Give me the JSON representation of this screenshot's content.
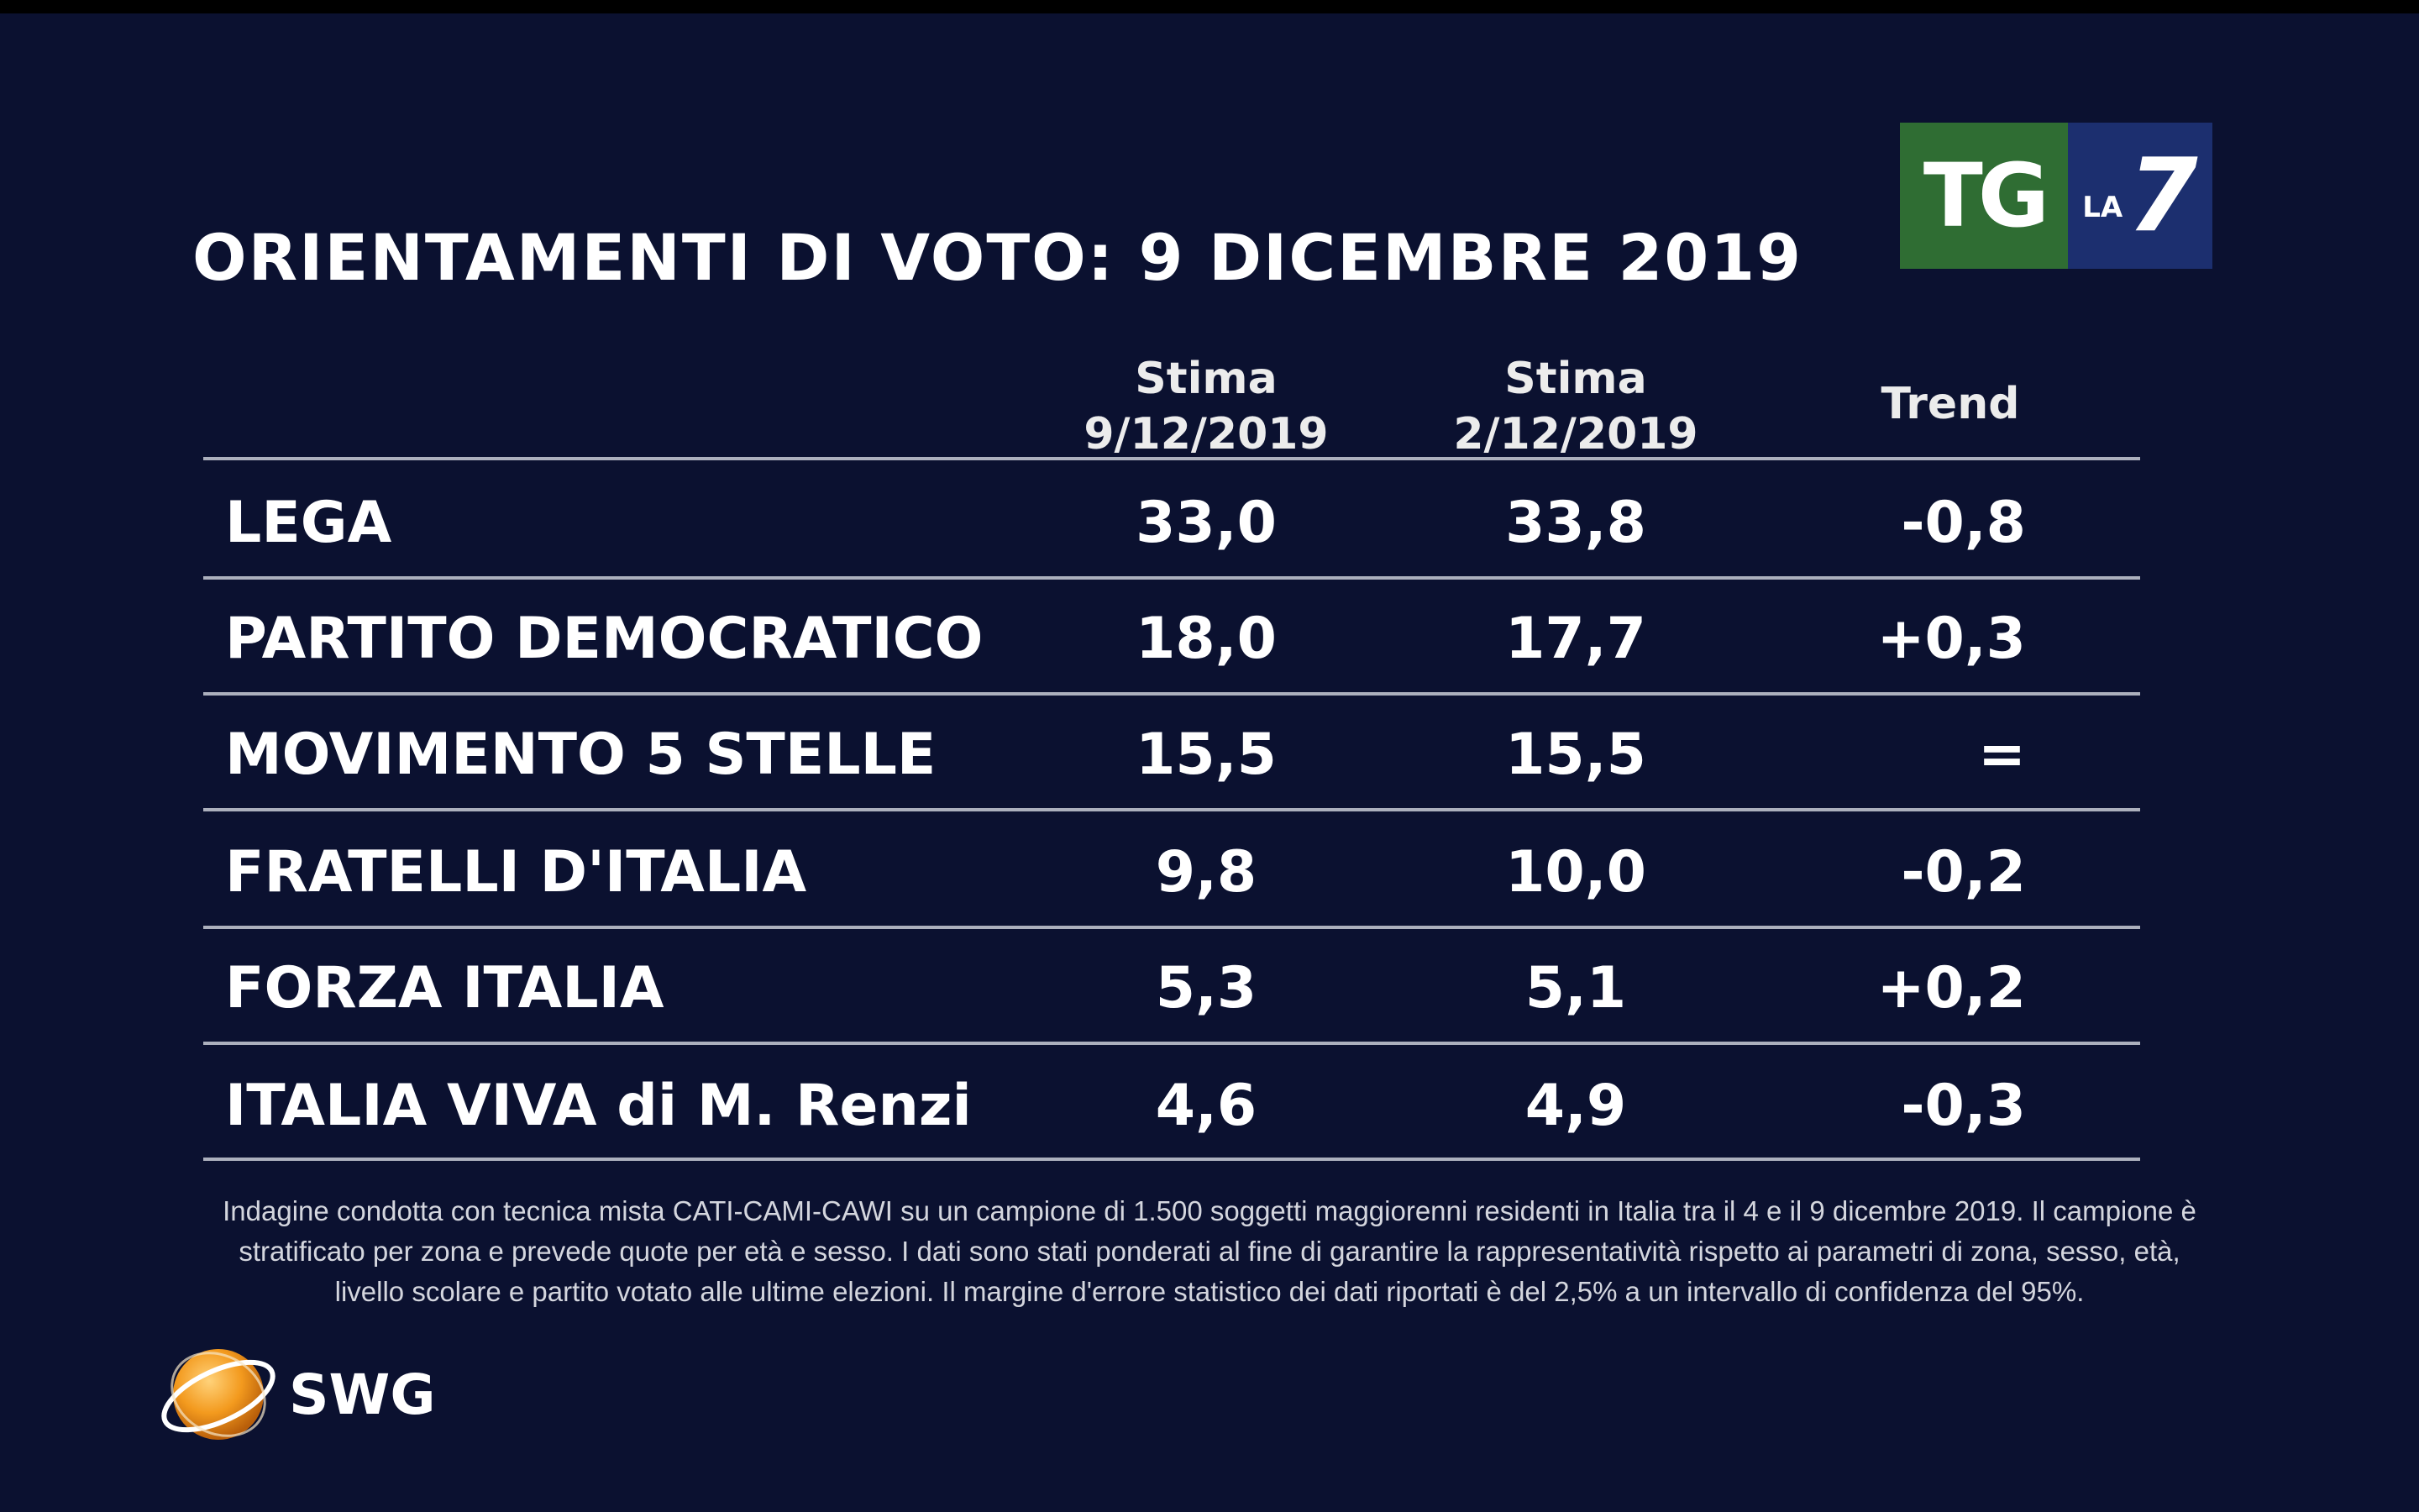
{
  "title": "ORIENTAMENTI DI VOTO: 9 DICEMBRE 2019",
  "logo": {
    "tg": "TG",
    "la": "LA",
    "seven": "7"
  },
  "columns": {
    "c1_line1": "Stima",
    "c1_line2": "9/12/2019",
    "c2_line1": "Stima",
    "c2_line2": "2/12/2019",
    "trend": "Trend"
  },
  "rows": [
    {
      "party": "LEGA",
      "v1": "33,0",
      "v2": "33,8",
      "trend": "-0,8"
    },
    {
      "party": "PARTITO DEMOCRATICO",
      "v1": "18,0",
      "v2": "17,7",
      "trend": "+0,3"
    },
    {
      "party": "MOVIMENTO 5 STELLE",
      "v1": "15,5",
      "v2": "15,5",
      "trend": "="
    },
    {
      "party": "FRATELLI D'ITALIA",
      "v1": "9,8",
      "v2": "10,0",
      "trend": "-0,2"
    },
    {
      "party": "FORZA ITALIA",
      "v1": "5,3",
      "v2": "5,1",
      "trend": "+0,2"
    },
    {
      "party": "ITALIA VIVA di M. Renzi",
      "v1": "4,6",
      "v2": "4,9",
      "trend": "-0,3"
    }
  ],
  "note": {
    "line1": "Indagine condotta con tecnica mista CATI-CAMI-CAWI su un campione di 1.500 soggetti maggiorenni residenti in Italia tra il 4 e il 9 dicembre 2019. Il campione è",
    "line2": "stratificato per zona e prevede quote per età e sesso. I dati sono stati ponderati al fine di garantire la rappresentatività rispetto ai parametri di zona, sesso, età,",
    "line3": "livello scolare e partito votato alle ultime elezioni. Il margine d'errore statistico dei dati riportati è del 2,5% a un intervallo di confidenza del 95%."
  },
  "brand": "SWG",
  "chart_data": {
    "type": "table",
    "title": "ORIENTAMENTI DI VOTO: 9 DICEMBRE 2019",
    "columns": [
      "Stima 9/12/2019",
      "Stima 2/12/2019",
      "Trend"
    ],
    "rows": [
      {
        "name": "LEGA",
        "values": [
          33.0,
          33.8,
          -0.8
        ]
      },
      {
        "name": "PARTITO DEMOCRATICO",
        "values": [
          18.0,
          17.7,
          0.3
        ]
      },
      {
        "name": "MOVIMENTO 5 STELLE",
        "values": [
          15.5,
          15.5,
          0
        ]
      },
      {
        "name": "FRATELLI D'ITALIA",
        "values": [
          9.8,
          10.0,
          -0.2
        ]
      },
      {
        "name": "FORZA ITALIA",
        "values": [
          5.3,
          5.1,
          0.2
        ]
      },
      {
        "name": "ITALIA VIVA di M. Renzi",
        "values": [
          4.6,
          4.9,
          -0.3
        ]
      }
    ]
  }
}
